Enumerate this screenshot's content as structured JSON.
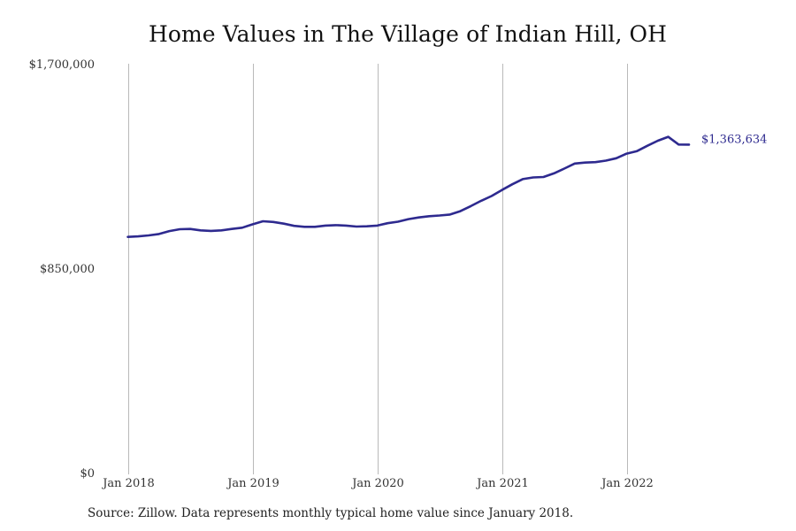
{
  "chart_data": {
    "type": "line",
    "title": "Home Values in The Village of Indian Hill, OH",
    "xlabel": "",
    "ylabel": "",
    "ylim": [
      0,
      1700000
    ],
    "y_ticks": [
      0,
      850000,
      1700000
    ],
    "y_tick_labels": [
      "$0",
      "$850,000",
      "$1,700,000"
    ],
    "x_ticks": [
      "2018-01",
      "2019-01",
      "2020-01",
      "2021-01",
      "2022-01"
    ],
    "x_tick_labels": [
      "Jan 2018",
      "Jan 2019",
      "Jan 2020",
      "Jan 2021",
      "Jan 2022"
    ],
    "x_range": [
      "2018-01",
      "2023-05"
    ],
    "grid": "vertical",
    "line_color": "#2e2a8f",
    "end_label": "$1,363,634",
    "series": [
      {
        "name": "",
        "x": [
          "2018-01",
          "2018-02",
          "2018-03",
          "2018-04",
          "2018-05",
          "2018-06",
          "2018-07",
          "2018-08",
          "2018-09",
          "2018-10",
          "2018-11",
          "2018-12",
          "2019-01",
          "2019-02",
          "2019-03",
          "2019-04",
          "2019-05",
          "2019-06",
          "2019-07",
          "2019-08",
          "2019-09",
          "2019-10",
          "2019-11",
          "2019-12",
          "2020-01",
          "2020-02",
          "2020-03",
          "2020-04",
          "2020-05",
          "2020-06",
          "2020-07",
          "2020-08",
          "2020-09",
          "2020-10",
          "2020-11",
          "2020-12",
          "2021-01",
          "2021-02",
          "2021-03",
          "2021-04",
          "2021-05",
          "2021-06",
          "2021-07",
          "2021-08",
          "2021-09",
          "2021-10",
          "2021-11",
          "2021-12",
          "2022-01",
          "2022-02",
          "2022-03",
          "2022-04",
          "2022-05",
          "2022-06",
          "2022-07"
        ],
        "values": [
          980000,
          982000,
          986000,
          992000,
          1004000,
          1012000,
          1013000,
          1007000,
          1005000,
          1007000,
          1013000,
          1018000,
          1032000,
          1045000,
          1042000,
          1035000,
          1026000,
          1022000,
          1022000,
          1027000,
          1029000,
          1027000,
          1023000,
          1024000,
          1027000,
          1037000,
          1043000,
          1054000,
          1061000,
          1066000,
          1069000,
          1073000,
          1087000,
          1108000,
          1130000,
          1150000,
          1175000,
          1199000,
          1220000,
          1227000,
          1229000,
          1244000,
          1264000,
          1285000,
          1289000,
          1291000,
          1297000,
          1307000,
          1326000,
          1337000,
          1359000,
          1380000,
          1396000,
          1364000,
          1363634
        ]
      }
    ]
  },
  "source": "Source: Zillow. Data represents monthly typical home value since January 2018."
}
